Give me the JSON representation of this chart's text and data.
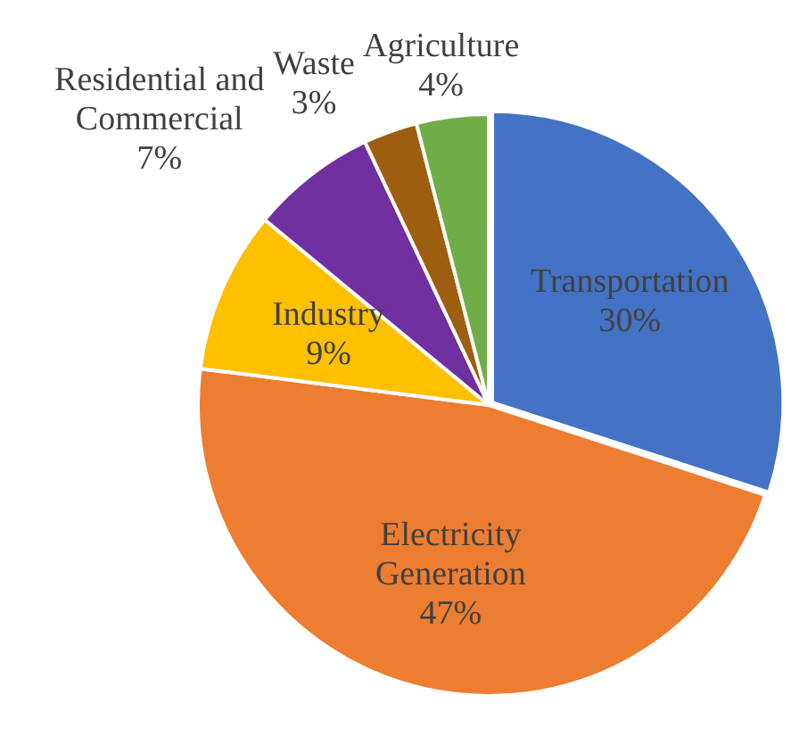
{
  "chart_data": {
    "type": "pie",
    "categories": [
      "Transportation",
      "Electricity Generation",
      "Industry",
      "Residential and Commercial",
      "Waste",
      "Agriculture"
    ],
    "values": [
      30,
      47,
      9,
      7,
      3,
      4
    ],
    "value_labels": [
      "30%",
      "47%",
      "9%",
      "7%",
      "3%",
      "4%"
    ],
    "colors": [
      "#4472c4",
      "#ed7d31",
      "#ffc000",
      "#7030a0",
      "#9e5e0f",
      "#70ad47"
    ],
    "legend": false
  }
}
